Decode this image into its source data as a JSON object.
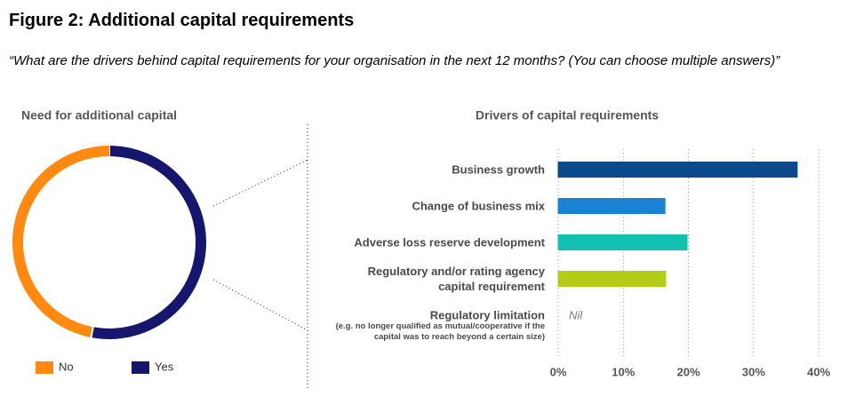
{
  "header": {
    "title": "Figure 2: Additional capital requirements",
    "subtitle": "“What are the drivers behind capital requirements for your organisation in the next 12 months? (You can choose multiple answers)”"
  },
  "chart_data": [
    {
      "type": "donut",
      "title": "Need for additional capital",
      "categories": [
        "No",
        "Yes"
      ],
      "values": [
        47,
        53
      ],
      "colors": [
        "#ff8a0f",
        "#16166e"
      ]
    },
    {
      "type": "hbar",
      "title": "Drivers of capital requirements",
      "categories": [
        "Business growth",
        "Change of business mix",
        "Adverse loss reserve development",
        "Regulatory and/or rating agency capital requirement",
        "Regulatory limitation"
      ],
      "annotations": [
        "(e.g. no longer qualified as mutual/cooperative if the capital was to reach beyond a certain size)"
      ],
      "values": [
        36.7,
        16.4,
        19.8,
        16.5,
        0
      ],
      "value_labels": [
        null,
        null,
        null,
        null,
        "Nil"
      ],
      "colors": [
        "#0d4a8c",
        "#1a82d2",
        "#14c0b0",
        "#b5cc16",
        "#999999"
      ],
      "xlim": [
        0,
        40
      ],
      "xticks": [
        {
          "value": 0,
          "label": "0%"
        },
        {
          "value": 10,
          "label": "10%"
        },
        {
          "value": 20,
          "label": "20%"
        },
        {
          "value": 30,
          "label": "30%"
        },
        {
          "value": 40,
          "label": "40%"
        }
      ],
      "grid": true
    }
  ]
}
